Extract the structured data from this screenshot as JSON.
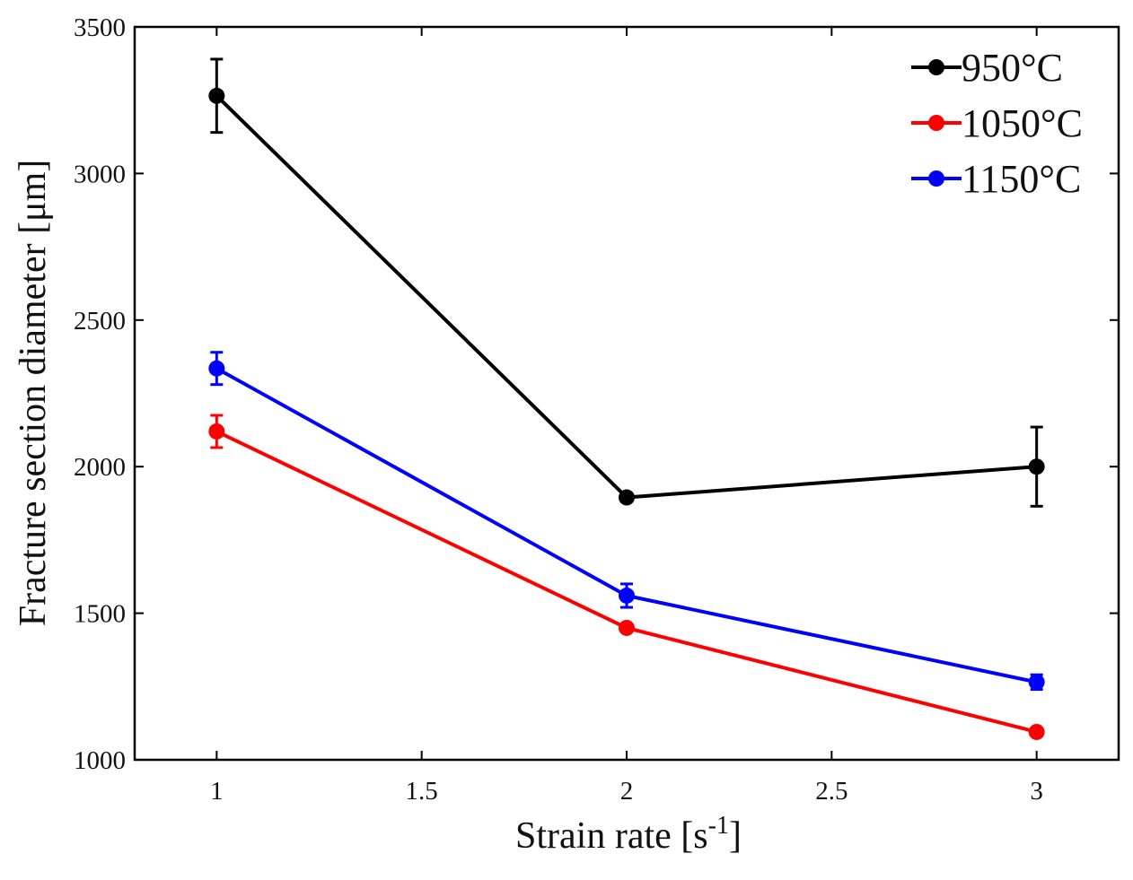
{
  "chart_data": {
    "type": "line",
    "title": "",
    "xlabel": "Strain rate [s",
    "xlabel_sup": "-1",
    "xlabel_close": "]",
    "ylabel": "Fracture section diameter [μm]",
    "xlim": [
      0.8,
      3.2
    ],
    "ylim": [
      1000,
      3500
    ],
    "xticks": [
      1,
      1.5,
      2,
      2.5,
      3
    ],
    "xtick_labels": [
      "1",
      "1.5",
      "2",
      "2.5",
      "3"
    ],
    "yticks": [
      1000,
      1500,
      2000,
      2500,
      3000,
      3500
    ],
    "ytick_labels": [
      "1000",
      "1500",
      "2000",
      "2500",
      "3000",
      "3500"
    ],
    "legend_position": "top-right",
    "grid": false,
    "x": [
      1,
      2,
      3
    ],
    "series": [
      {
        "name": "950°C",
        "color": "#000000",
        "values": [
          3265,
          1895,
          2000
        ],
        "errors": [
          125,
          0,
          135
        ]
      },
      {
        "name": "1050°C",
        "color": "#ff0000",
        "values": [
          2120,
          1450,
          1095
        ],
        "errors": [
          55,
          0,
          0
        ]
      },
      {
        "name": "1150°C",
        "color": "#0000ff",
        "values": [
          2335,
          1560,
          1265
        ],
        "errors": [
          55,
          40,
          25
        ]
      }
    ]
  }
}
